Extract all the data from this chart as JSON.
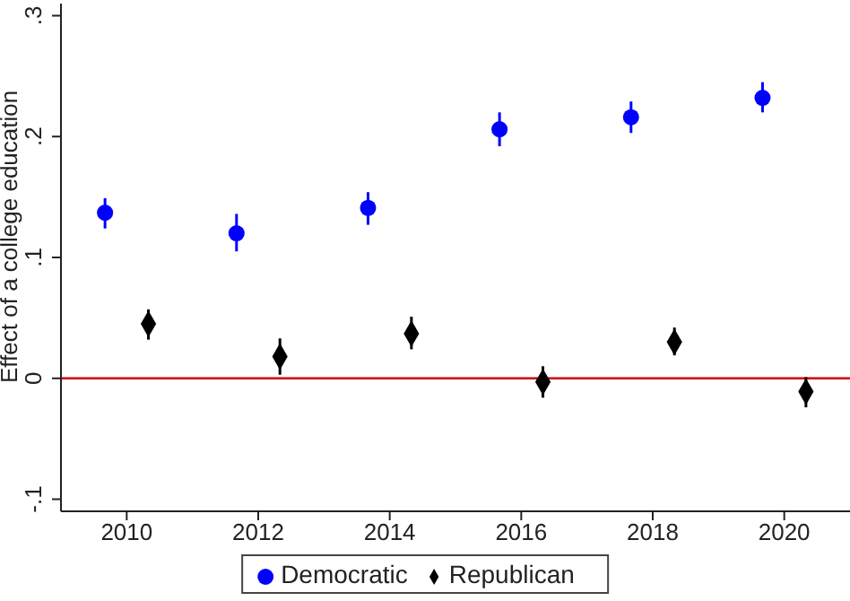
{
  "chart_data": {
    "type": "scatter",
    "ylabel": "Effect of a college education",
    "xlim": [
      2009,
      2021
    ],
    "xticks": [
      2010,
      2012,
      2014,
      2016,
      2018,
      2020
    ],
    "ylim": [
      -0.11,
      0.31
    ],
    "yticks": [
      {
        "value": -0.1,
        "label": "-.1"
      },
      {
        "value": 0,
        "label": "0"
      },
      {
        "value": 0.1,
        "label": ".1"
      },
      {
        "value": 0.2,
        "label": ".2"
      },
      {
        "value": 0.3,
        "label": ".3"
      }
    ],
    "series": [
      {
        "name": "Democratic",
        "color": "#0000ff",
        "marker": "circle",
        "x": [
          2009.67,
          2011.67,
          2013.67,
          2015.67,
          2017.67,
          2019.67
        ],
        "values": [
          0.137,
          0.12,
          0.141,
          0.206,
          0.216,
          0.232
        ],
        "errors": [
          [
            0.124,
            0.149
          ],
          [
            0.105,
            0.136
          ],
          [
            0.127,
            0.154
          ],
          [
            0.192,
            0.22
          ],
          [
            0.203,
            0.229
          ],
          [
            0.22,
            0.245
          ]
        ]
      },
      {
        "name": "Republican",
        "color": "#000000",
        "marker": "diamond",
        "x": [
          2010.33,
          2012.33,
          2014.33,
          2016.33,
          2018.33,
          2020.33
        ],
        "values": [
          0.045,
          0.018,
          0.037,
          -0.003,
          0.03,
          -0.011
        ],
        "errors": [
          [
            0.032,
            0.057
          ],
          [
            0.003,
            0.033
          ],
          [
            0.024,
            0.051
          ],
          [
            -0.016,
            0.01
          ],
          [
            0.019,
            0.042
          ],
          [
            -0.024,
            0.001
          ]
        ]
      }
    ],
    "ref_lines": [
      {
        "axis": "y",
        "value": 0,
        "color": "#cc0000"
      }
    ],
    "grid": false,
    "legend": "bottom"
  }
}
